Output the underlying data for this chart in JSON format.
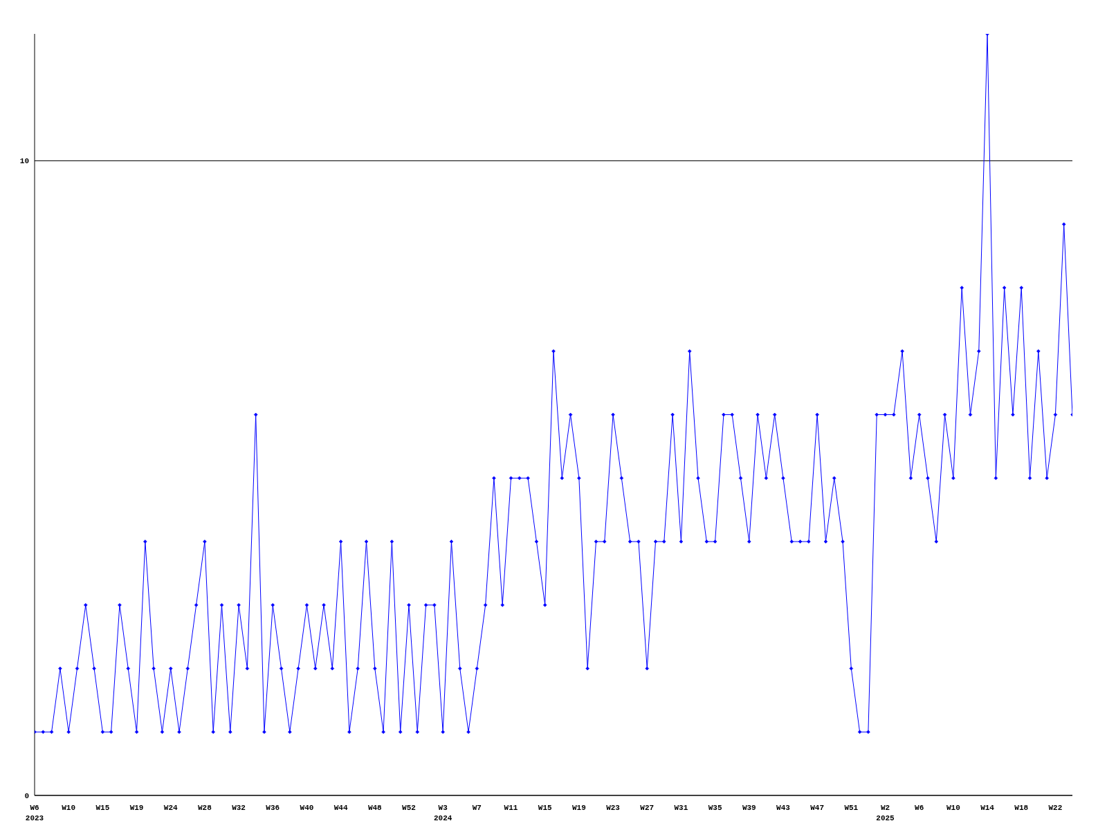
{
  "chart_data": {
    "type": "line",
    "categories": [
      "W6 2023",
      null,
      null,
      null,
      "W10",
      null,
      null,
      null,
      "W15",
      null,
      null,
      null,
      "W19",
      null,
      null,
      null,
      "W24",
      null,
      null,
      null,
      "W28",
      null,
      null,
      null,
      "W32",
      null,
      null,
      null,
      "W36",
      null,
      null,
      null,
      "W40",
      null,
      null,
      null,
      "W44",
      null,
      null,
      null,
      "W48",
      null,
      null,
      null,
      "W52",
      null,
      null,
      null,
      "W3 2024",
      null,
      null,
      null,
      "W7",
      null,
      null,
      null,
      "W11",
      null,
      null,
      null,
      "W15",
      null,
      null,
      null,
      "W19",
      null,
      null,
      null,
      "W23",
      null,
      null,
      null,
      "W27",
      null,
      null,
      null,
      "W31",
      null,
      null,
      null,
      "W35",
      null,
      null,
      null,
      "W39",
      null,
      null,
      null,
      "W43",
      null,
      null,
      null,
      "W47",
      null,
      null,
      null,
      "W51",
      null,
      null,
      null,
      "W2 2025",
      null,
      null,
      null,
      "W6",
      null,
      null,
      null,
      "W10",
      null,
      null,
      null,
      "W14",
      null,
      null,
      null,
      "W18",
      null,
      null,
      null,
      "W22",
      null,
      null
    ],
    "series": [
      {
        "color": "#0000ff",
        "values": [
          1,
          1,
          1,
          2,
          1,
          2,
          3,
          2,
          1,
          1,
          3,
          2,
          1,
          4,
          2,
          1,
          2,
          1,
          2,
          3,
          4,
          1,
          3,
          1,
          3,
          2,
          6,
          1,
          3,
          2,
          1,
          2,
          3,
          2,
          3,
          2,
          4,
          1,
          2,
          4,
          2,
          1,
          4,
          1,
          3,
          1,
          3,
          3,
          1,
          4,
          2,
          1,
          2,
          3,
          5,
          3,
          5,
          5,
          5,
          4,
          3,
          7,
          5,
          6,
          5,
          2,
          4,
          4,
          6,
          5,
          4,
          4,
          2,
          4,
          4,
          6,
          4,
          7,
          5,
          4,
          4,
          6,
          6,
          5,
          4,
          6,
          5,
          6,
          5,
          4,
          4,
          4,
          6,
          4,
          5,
          4,
          2,
          1,
          1,
          6,
          6,
          6,
          7,
          5,
          6,
          5,
          4,
          6,
          5,
          8,
          6,
          7,
          12,
          5,
          8,
          6,
          8,
          5,
          7,
          5,
          6,
          9,
          6
        ]
      }
    ],
    "ylim": [
      0,
      12
    ],
    "yticks": [
      0,
      10
    ],
    "grid": "y",
    "marker": "diamond",
    "line_style": "solid"
  }
}
